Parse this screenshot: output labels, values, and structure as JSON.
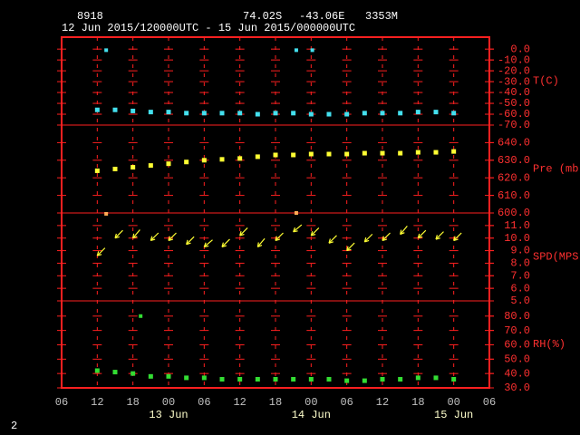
{
  "header": {
    "station": "8918",
    "lat": "74.02S",
    "lon": "-43.06E",
    "elevation": "3353M",
    "period": "12 Jun 2015/120000UTC - 15 Jun 2015/000000UTC",
    "page": "2"
  },
  "chart_data": [
    {
      "type": "scatter",
      "y_label": "T(C)",
      "color": "#44e0ee",
      "ylim": [
        -70,
        11
      ],
      "yticks": [
        {
          "value": 0,
          "label": "0.0"
        },
        {
          "value": -10,
          "label": "-10.0"
        },
        {
          "value": -20,
          "label": "-20.0"
        },
        {
          "value": -30,
          "label": "-30.0"
        },
        {
          "value": -40,
          "label": "-40.0"
        },
        {
          "value": -50,
          "label": "-50.0"
        },
        {
          "value": -60,
          "label": "-60.0"
        },
        {
          "value": -70,
          "label": "-70.0"
        }
      ],
      "x": [
        6,
        9,
        12,
        15,
        18,
        21,
        24,
        27,
        30,
        33,
        36,
        39,
        42,
        45,
        48,
        51,
        54,
        57,
        60,
        63,
        66
      ],
      "values": [
        -56,
        -56,
        -57,
        -58,
        -58,
        -59,
        -59,
        -59,
        -59,
        -60,
        -59,
        -59,
        -60,
        -60,
        -60,
        -59,
        -59,
        -59,
        -58,
        -58,
        -59
      ],
      "outliers": {
        "x": [
          7.5,
          39.5,
          42.2
        ],
        "values": [
          -1,
          -1,
          -1
        ],
        "color": "#44e0ee"
      }
    },
    {
      "type": "scatter",
      "y_label": "Pre (mb)",
      "color": "#ffff33",
      "ylim": [
        600,
        650
      ],
      "yticks": [
        {
          "value": 640,
          "label": "640.0"
        },
        {
          "value": 630,
          "label": "630.0"
        },
        {
          "value": 620,
          "label": "620.0"
        },
        {
          "value": 610,
          "label": "610.0"
        },
        {
          "value": 600,
          "label": "600.0"
        }
      ],
      "x": [
        6,
        9,
        12,
        15,
        18,
        21,
        24,
        27,
        30,
        33,
        36,
        39,
        42,
        45,
        48,
        51,
        54,
        57,
        60,
        63,
        66
      ],
      "values": [
        624,
        625,
        626,
        627,
        628,
        629,
        630,
        630.5,
        631,
        632,
        633,
        633,
        633.5,
        633.5,
        633.5,
        634,
        634,
        634,
        634.5,
        634.5,
        635
      ],
      "outliers": {
        "x": [
          7.5,
          39.5
        ],
        "values": [
          599.5,
          600
        ],
        "color": "#ffaa55"
      }
    },
    {
      "type": "vector",
      "y_label": "SPD(MPS)",
      "color": "#ffff33",
      "ylim": [
        5,
        12
      ],
      "yticks": [
        {
          "value": 11,
          "label": "11.0"
        },
        {
          "value": 10,
          "label": "10.0"
        },
        {
          "value": 9,
          "label": "9.0"
        },
        {
          "value": 8,
          "label": "8.0"
        },
        {
          "value": 7,
          "label": "7.0"
        },
        {
          "value": 6,
          "label": "6.0"
        },
        {
          "value": 5,
          "label": "5.0"
        }
      ],
      "x": [
        6,
        9,
        12,
        15,
        18,
        21,
        24,
        27,
        30,
        33,
        36,
        39,
        42,
        45,
        48,
        51,
        54,
        57,
        60,
        63,
        66
      ],
      "values": [
        8.6,
        10,
        10,
        9.8,
        9.8,
        9.5,
        9.3,
        9.3,
        10.2,
        9.3,
        9.8,
        10.5,
        10.2,
        9.6,
        9,
        9.7,
        9.8,
        10.3,
        10,
        9.9,
        9.8
      ],
      "direction": [
        45,
        45,
        40,
        45,
        45,
        45,
        50,
        45,
        45,
        40,
        45,
        50,
        45,
        45,
        45,
        45,
        45,
        40,
        45,
        45,
        45
      ]
    },
    {
      "type": "scatter",
      "y_label": "RH(%)",
      "color": "#33dd33",
      "ylim": [
        30,
        90.6
      ],
      "yticks": [
        {
          "value": 80,
          "label": "80.0"
        },
        {
          "value": 70,
          "label": "70.0"
        },
        {
          "value": 60,
          "label": "60.0"
        },
        {
          "value": 50,
          "label": "50.0"
        },
        {
          "value": 40,
          "label": "40.0"
        },
        {
          "value": 30,
          "label": "30.0"
        }
      ],
      "x": [
        6,
        9,
        12,
        15,
        18,
        21,
        24,
        27,
        30,
        33,
        36,
        39,
        42,
        45,
        48,
        51,
        54,
        57,
        60,
        63,
        66
      ],
      "values": [
        42,
        41,
        40,
        38,
        38,
        37,
        37,
        36,
        36,
        36,
        36,
        36,
        36,
        36,
        35,
        35,
        36,
        36,
        37,
        37,
        36
      ],
      "outliers": {
        "x": [
          13.3
        ],
        "values": [
          80
        ],
        "color": "#33dd33"
      },
      "xlim": [
        0,
        72
      ],
      "xticks": [
        {
          "value": 0,
          "label": "06"
        },
        {
          "value": 6,
          "label": "12"
        },
        {
          "value": 12,
          "label": "18"
        },
        {
          "value": 18,
          "label": "00"
        },
        {
          "value": 24,
          "label": "06"
        },
        {
          "value": 30,
          "label": "12"
        },
        {
          "value": 36,
          "label": "18"
        },
        {
          "value": 42,
          "label": "00"
        },
        {
          "value": 48,
          "label": "06"
        },
        {
          "value": 54,
          "label": "12"
        },
        {
          "value": 60,
          "label": "18"
        },
        {
          "value": 66,
          "label": "00"
        },
        {
          "value": 72,
          "label": "06"
        }
      ],
      "annotations": [
        {
          "x": 18,
          "text": "13 Jun"
        },
        {
          "x": 42,
          "text": "14 Jun"
        },
        {
          "x": 66,
          "text": "15 Jun"
        }
      ]
    }
  ]
}
